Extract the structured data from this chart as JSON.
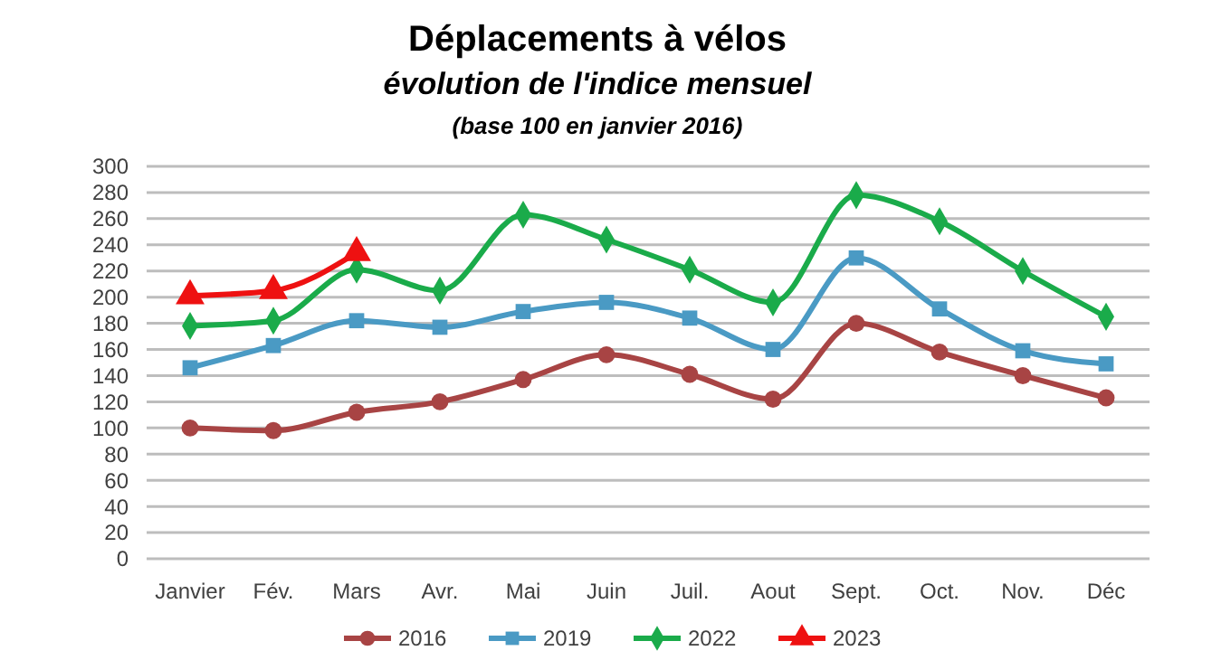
{
  "chart_data": {
    "type": "line",
    "title": "Déplacements à vélos",
    "subtitle": "évolution de l'indice mensuel",
    "annotations": [
      "(base 100 en janvier 2016)"
    ],
    "categories": [
      "Janvier",
      "Fév.",
      "Mars",
      "Avr.",
      "Mai",
      "Juin",
      "Juil.",
      "Aout",
      "Sept.",
      "Oct.",
      "Nov.",
      "Déc"
    ],
    "ylim": [
      0,
      300
    ],
    "yticks": [
      0,
      20,
      40,
      60,
      80,
      100,
      120,
      140,
      160,
      180,
      200,
      220,
      240,
      260,
      280,
      300
    ],
    "grid": "y",
    "legend": "bottom",
    "series": [
      {
        "name": "2016",
        "color": "#a84444",
        "marker": "circle",
        "values": [
          100,
          98,
          112,
          120,
          137,
          156,
          141,
          122,
          180,
          158,
          140,
          123
        ]
      },
      {
        "name": "2019",
        "color": "#4a9ac4",
        "marker": "square",
        "values": [
          146,
          163,
          182,
          177,
          189,
          196,
          184,
          160,
          230,
          191,
          159,
          149
        ]
      },
      {
        "name": "2022",
        "color": "#1aab4a",
        "marker": "diamond",
        "values": [
          178,
          182,
          221,
          205,
          263,
          244,
          221,
          196,
          278,
          258,
          220,
          185
        ]
      },
      {
        "name": "2023",
        "color": "#ee1111",
        "marker": "triangle",
        "values": [
          201,
          205,
          234,
          null,
          null,
          null,
          null,
          null,
          null,
          null,
          null,
          null
        ]
      }
    ]
  }
}
